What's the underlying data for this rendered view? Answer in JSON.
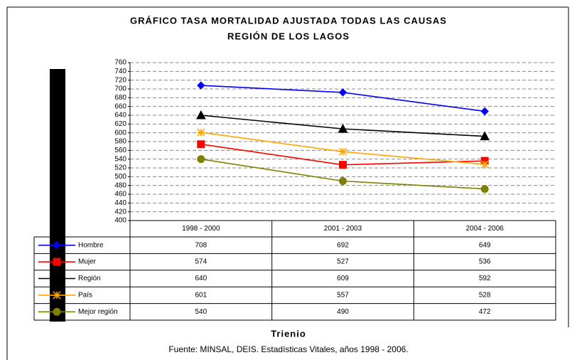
{
  "chart_data": {
    "type": "line",
    "title": "GRÁFICO TASA MORTALIDAD AJUSTADA TODAS LAS CAUSAS",
    "subtitle": "REGIÓN DE LOS LAGOS",
    "xlabel": "Trienio",
    "source": "Fuente: MINSAL, DEIS. Estadísticas Vitales, años 1998 - 2006.",
    "categories": [
      "1998 - 2000",
      "2001 - 2003",
      "2004 - 2006"
    ],
    "series": [
      {
        "name": "Hombre",
        "color": "#0000ff",
        "marker": "diamond",
        "values": [
          708,
          692,
          649
        ]
      },
      {
        "name": "Mujer",
        "color": "#ff0000",
        "marker": "square",
        "values": [
          574,
          527,
          536
        ]
      },
      {
        "name": "Región",
        "color": "#000000",
        "marker": "triangle",
        "values": [
          640,
          609,
          592
        ]
      },
      {
        "name": "País",
        "color": "#ffa500",
        "marker": "star",
        "values": [
          601,
          557,
          528
        ]
      },
      {
        "name": "Mejor región",
        "color": "#808000",
        "marker": "circle",
        "values": [
          540,
          490,
          472
        ]
      }
    ],
    "ylim": [
      400,
      760
    ],
    "yticks": [
      400,
      420,
      440,
      460,
      480,
      500,
      520,
      540,
      560,
      580,
      600,
      620,
      640,
      660,
      680,
      700,
      720,
      740,
      760
    ],
    "grid": true
  }
}
